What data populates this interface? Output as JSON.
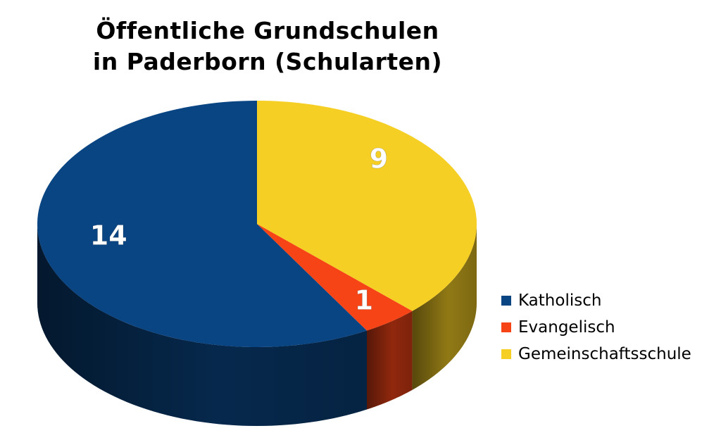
{
  "chart_data": {
    "type": "pie",
    "title": [
      "Öffentliche Grundschulen",
      "in Paderborn (Schularten)"
    ],
    "categories": [
      "Katholisch",
      "Evangelisch",
      "Gemeinschaftsschule"
    ],
    "values": [
      14,
      1,
      9
    ],
    "data_labels": [
      "14",
      "1",
      "9"
    ],
    "colors": [
      "#0a4583",
      "#f64417",
      "#f6cf24"
    ],
    "legend_position": "right-bottom",
    "style": "3d"
  }
}
